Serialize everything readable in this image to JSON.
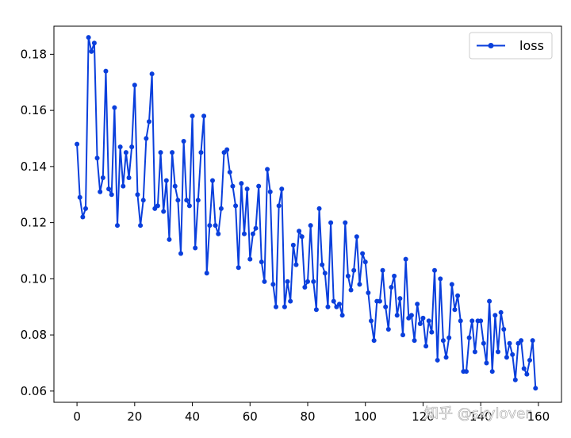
{
  "chart_data": {
    "type": "line",
    "title": "",
    "xlabel": "",
    "ylabel": "",
    "xlim": [
      -8,
      168
    ],
    "ylim": [
      0.056,
      0.19
    ],
    "xticks": [
      0,
      20,
      40,
      60,
      80,
      100,
      120,
      140,
      160
    ],
    "xtick_labels": [
      "0",
      "20",
      "40",
      "60",
      "80",
      "100",
      "120",
      "140",
      "160"
    ],
    "yticks": [
      0.06,
      0.08,
      0.1,
      0.12,
      0.14,
      0.16,
      0.18
    ],
    "ytick_labels": [
      "0.06",
      "0.08",
      "0.10",
      "0.12",
      "0.14",
      "0.16",
      "0.18"
    ],
    "grid": false,
    "legend_position": "upper right",
    "series": [
      {
        "name": "loss",
        "color": "#0a3fdc",
        "marker": "circle",
        "x": [
          0,
          1,
          2,
          3,
          4,
          5,
          6,
          7,
          8,
          9,
          10,
          11,
          12,
          13,
          14,
          15,
          16,
          17,
          18,
          19,
          20,
          21,
          22,
          23,
          24,
          25,
          26,
          27,
          28,
          29,
          30,
          31,
          32,
          33,
          34,
          35,
          36,
          37,
          38,
          39,
          40,
          41,
          42,
          43,
          44,
          45,
          46,
          47,
          48,
          49,
          50,
          51,
          52,
          53,
          54,
          55,
          56,
          57,
          58,
          59,
          60,
          61,
          62,
          63,
          64,
          65,
          66,
          67,
          68,
          69,
          70,
          71,
          72,
          73,
          74,
          75,
          76,
          77,
          78,
          79,
          80,
          81,
          82,
          83,
          84,
          85,
          86,
          87,
          88,
          89,
          90,
          91,
          92,
          93,
          94,
          95,
          96,
          97,
          98,
          99,
          100,
          101,
          102,
          103,
          104,
          105,
          106,
          107,
          108,
          109,
          110,
          111,
          112,
          113,
          114,
          115,
          116,
          117,
          118,
          119,
          120,
          121,
          122,
          123,
          124,
          125,
          126,
          127,
          128,
          129,
          130,
          131,
          132,
          133,
          134,
          135,
          136,
          137,
          138,
          139,
          140,
          141,
          142,
          143,
          144,
          145,
          146,
          147,
          148,
          149,
          150,
          151,
          152,
          153,
          154,
          155,
          156,
          157,
          158,
          159
        ],
        "y": [
          0.148,
          0.129,
          0.122,
          0.125,
          0.186,
          0.181,
          0.184,
          0.143,
          0.131,
          0.136,
          0.174,
          0.132,
          0.13,
          0.161,
          0.119,
          0.147,
          0.133,
          0.145,
          0.136,
          0.147,
          0.169,
          0.13,
          0.119,
          0.128,
          0.15,
          0.156,
          0.173,
          0.125,
          0.126,
          0.145,
          0.124,
          0.135,
          0.114,
          0.145,
          0.133,
          0.128,
          0.109,
          0.149,
          0.128,
          0.126,
          0.158,
          0.111,
          0.128,
          0.145,
          0.158,
          0.102,
          0.119,
          0.135,
          0.119,
          0.116,
          0.125,
          0.145,
          0.146,
          0.138,
          0.133,
          0.126,
          0.104,
          0.134,
          0.116,
          0.132,
          0.107,
          0.116,
          0.118,
          0.133,
          0.106,
          0.099,
          0.139,
          0.131,
          0.098,
          0.09,
          0.126,
          0.132,
          0.09,
          0.099,
          0.092,
          0.112,
          0.105,
          0.117,
          0.115,
          0.097,
          0.099,
          0.119,
          0.099,
          0.089,
          0.125,
          0.105,
          0.102,
          0.09,
          0.12,
          0.092,
          0.09,
          0.091,
          0.087,
          0.12,
          0.101,
          0.096,
          0.103,
          0.115,
          0.098,
          0.109,
          0.106,
          0.095,
          0.085,
          0.078,
          0.092,
          0.092,
          0.103,
          0.09,
          0.082,
          0.097,
          0.101,
          0.087,
          0.093,
          0.08,
          0.107,
          0.086,
          0.087,
          0.078,
          0.091,
          0.084,
          0.086,
          0.076,
          0.085,
          0.081,
          0.103,
          0.071,
          0.1,
          0.078,
          0.072,
          0.079,
          0.098,
          0.089,
          0.094,
          0.085,
          0.067,
          0.067,
          0.079,
          0.085,
          0.074,
          0.085,
          0.085,
          0.077,
          0.07,
          0.092,
          0.067,
          0.087,
          0.074,
          0.088,
          0.082,
          0.072,
          0.077,
          0.073,
          0.064,
          0.077,
          0.078,
          0.068,
          0.066,
          0.071,
          0.078,
          0.061
        ]
      }
    ]
  },
  "watermark": {
    "text": "知乎 @skylover"
  }
}
